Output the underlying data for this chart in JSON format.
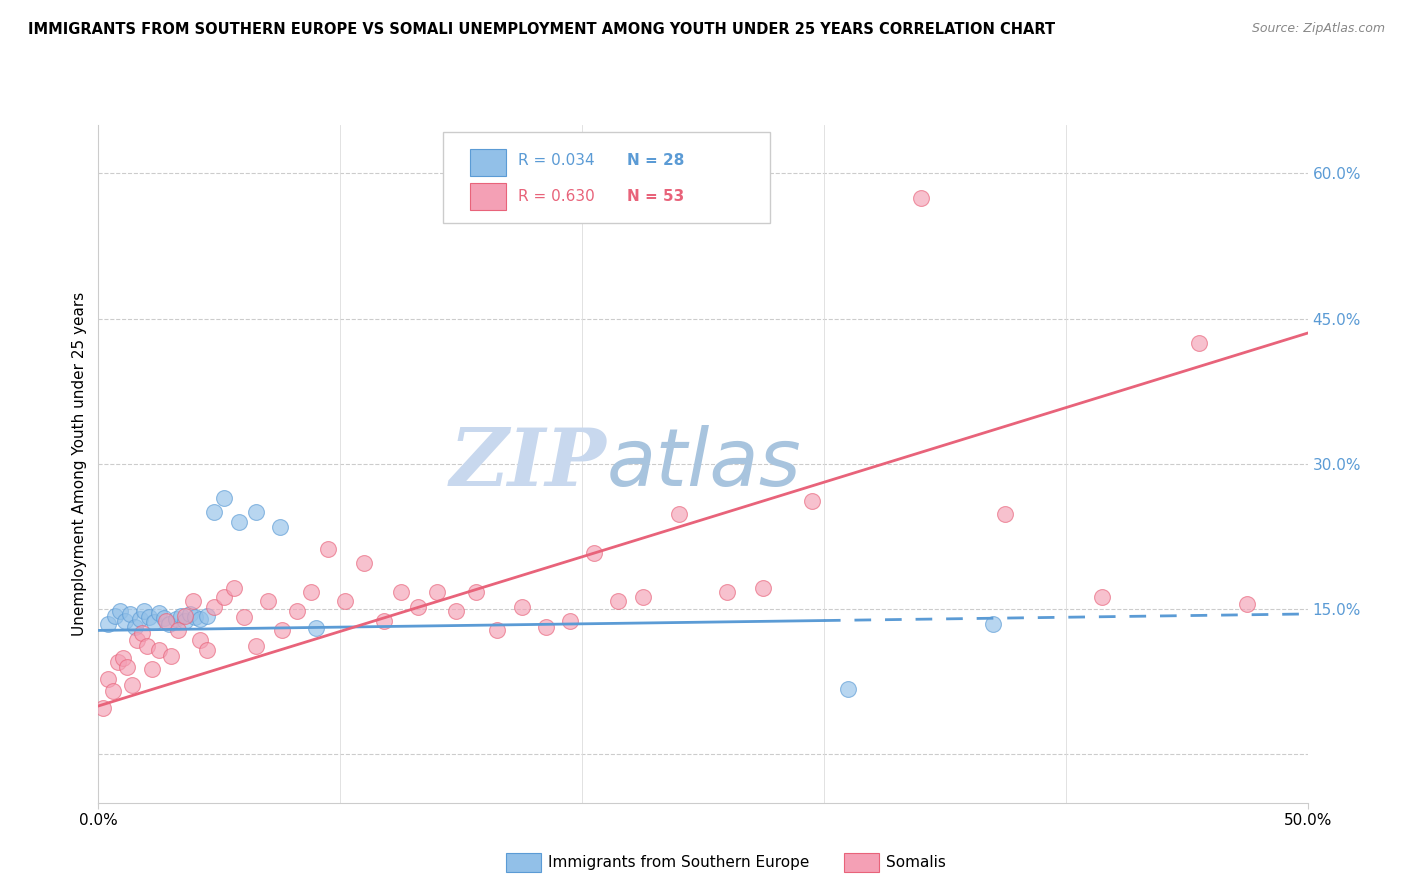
{
  "title": "IMMIGRANTS FROM SOUTHERN EUROPE VS SOMALI UNEMPLOYMENT AMONG YOUTH UNDER 25 YEARS CORRELATION CHART",
  "source": "Source: ZipAtlas.com",
  "ylabel": "Unemployment Among Youth under 25 years",
  "legend_label1": "Immigrants from Southern Europe",
  "legend_label2": "Somalis",
  "color_blue": "#92C0E8",
  "color_pink": "#F4A0B5",
  "trendline1_color": "#5B9BD5",
  "trendline2_color": "#E8637A",
  "watermark_zip": "ZIP",
  "watermark_atlas": "atlas",
  "watermark_color": "#C8D8EE",
  "xlim": [
    0.0,
    0.5
  ],
  "ylim": [
    -0.05,
    0.65
  ],
  "grid_yticks": [
    0.0,
    0.15,
    0.3,
    0.45,
    0.6
  ],
  "right_ytick_labels": [
    "",
    "15.0%",
    "30.0%",
    "45.0%",
    "60.0%"
  ],
  "trendline1_x": [
    0.0,
    0.5
  ],
  "trendline1_y": [
    0.128,
    0.145
  ],
  "trendline1_solid_end": 0.3,
  "trendline2_x": [
    0.0,
    0.5
  ],
  "trendline2_y": [
    0.05,
    0.435
  ],
  "blue_x": [
    0.004,
    0.007,
    0.009,
    0.011,
    0.013,
    0.015,
    0.017,
    0.019,
    0.021,
    0.023,
    0.025,
    0.027,
    0.029,
    0.032,
    0.034,
    0.036,
    0.038,
    0.04,
    0.042,
    0.045,
    0.048,
    0.052,
    0.058,
    0.065,
    0.075,
    0.09,
    0.31,
    0.37
  ],
  "blue_y": [
    0.135,
    0.143,
    0.148,
    0.138,
    0.145,
    0.132,
    0.14,
    0.148,
    0.142,
    0.137,
    0.146,
    0.141,
    0.135,
    0.14,
    0.143,
    0.138,
    0.145,
    0.142,
    0.14,
    0.143,
    0.25,
    0.265,
    0.24,
    0.25,
    0.235,
    0.13,
    0.068,
    0.135
  ],
  "pink_x": [
    0.002,
    0.004,
    0.006,
    0.008,
    0.01,
    0.012,
    0.014,
    0.016,
    0.018,
    0.02,
    0.022,
    0.025,
    0.028,
    0.03,
    0.033,
    0.036,
    0.039,
    0.042,
    0.045,
    0.048,
    0.052,
    0.056,
    0.06,
    0.065,
    0.07,
    0.076,
    0.082,
    0.088,
    0.095,
    0.102,
    0.11,
    0.118,
    0.125,
    0.132,
    0.14,
    0.148,
    0.156,
    0.165,
    0.175,
    0.185,
    0.195,
    0.205,
    0.215,
    0.225,
    0.24,
    0.26,
    0.275,
    0.295,
    0.34,
    0.375,
    0.415,
    0.455,
    0.475
  ],
  "pink_y": [
    0.048,
    0.078,
    0.065,
    0.095,
    0.1,
    0.09,
    0.072,
    0.118,
    0.125,
    0.112,
    0.088,
    0.108,
    0.138,
    0.102,
    0.128,
    0.143,
    0.158,
    0.118,
    0.108,
    0.152,
    0.162,
    0.172,
    0.142,
    0.112,
    0.158,
    0.128,
    0.148,
    0.168,
    0.212,
    0.158,
    0.198,
    0.138,
    0.168,
    0.152,
    0.168,
    0.148,
    0.168,
    0.128,
    0.152,
    0.132,
    0.138,
    0.208,
    0.158,
    0.162,
    0.248,
    0.168,
    0.172,
    0.262,
    0.575,
    0.248,
    0.162,
    0.425,
    0.155
  ]
}
